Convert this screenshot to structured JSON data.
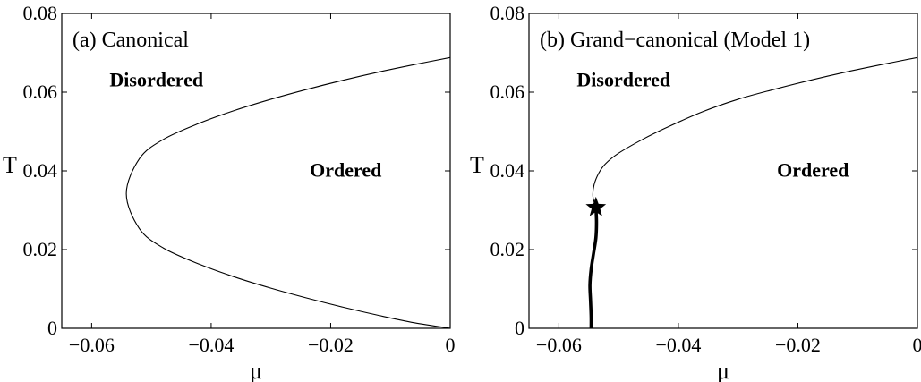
{
  "chart_data": [
    {
      "type": "line",
      "title": "(a) Canonical",
      "xlabel": "μ",
      "ylabel": "T",
      "xlim": [
        -0.065,
        0
      ],
      "ylim": [
        0,
        0.08
      ],
      "xticks": [
        -0.06,
        -0.04,
        -0.02,
        0
      ],
      "xtick_labels": [
        "−0.06",
        "−0.04",
        "−0.02",
        "0"
      ],
      "yticks": [
        0,
        0.02,
        0.04,
        0.06,
        0.08
      ],
      "ytick_labels": [
        "0",
        "0.02",
        "0.04",
        "0.06",
        "0.08"
      ],
      "grid": false,
      "annotations": [
        {
          "text": "Disordered",
          "x": -0.057,
          "y": 0.0615
        },
        {
          "text": "Ordered",
          "x": -0.0235,
          "y": 0.0385
        }
      ],
      "series": [
        {
          "style": "thin",
          "x": [
            0,
            -0.006,
            -0.012,
            -0.018,
            -0.024,
            -0.03,
            -0.036,
            -0.042,
            -0.048,
            -0.052,
            -0.0542,
            -0.052,
            -0.048,
            -0.042,
            -0.036,
            -0.03,
            -0.024,
            -0.018,
            -0.012,
            -0.006,
            0
          ],
          "y": [
            0,
            0.0014,
            0.0033,
            0.0054,
            0.0077,
            0.0102,
            0.013,
            0.0163,
            0.0204,
            0.0253,
            0.0342,
            0.0431,
            0.048,
            0.0521,
            0.0554,
            0.0582,
            0.0607,
            0.063,
            0.0651,
            0.067,
            0.0688
          ]
        }
      ]
    },
    {
      "type": "line",
      "title": "(b) Grand−canonical (Model 1)",
      "xlabel": "μ",
      "ylabel": "T",
      "xlim": [
        -0.065,
        0
      ],
      "ylim": [
        0,
        0.08
      ],
      "xticks": [
        -0.06,
        -0.04,
        -0.02,
        0
      ],
      "xtick_labels": [
        "−0.06",
        "−0.04",
        "−0.02",
        "0"
      ],
      "yticks": [
        0,
        0.02,
        0.04,
        0.06,
        0.08
      ],
      "ytick_labels": [
        "0",
        "0.02",
        "0.04",
        "0.06",
        "0.08"
      ],
      "grid": false,
      "annotations": [
        {
          "text": "Disordered",
          "x": -0.057,
          "y": 0.0615
        },
        {
          "text": "Ordered",
          "x": -0.0235,
          "y": 0.0385
        }
      ],
      "marker": {
        "shape": "star",
        "x": -0.0538,
        "y": 0.0307
      },
      "series": [
        {
          "style": "thin",
          "x": [
            -0.0538,
            -0.0543,
            -0.0541,
            -0.0533,
            -0.0522,
            -0.05,
            -0.046,
            -0.042,
            -0.036,
            -0.03,
            -0.024,
            -0.018,
            -0.012,
            -0.006,
            0
          ],
          "y": [
            0.0307,
            0.0335,
            0.0365,
            0.0395,
            0.0418,
            0.0445,
            0.048,
            0.051,
            0.055,
            0.0582,
            0.0607,
            0.063,
            0.0651,
            0.067,
            0.0688
          ]
        },
        {
          "style": "thick",
          "x": [
            -0.0538,
            -0.0537,
            -0.0538,
            -0.0542,
            -0.0546,
            -0.0548,
            -0.0547,
            -0.0546,
            -0.0546
          ],
          "y": [
            0.0307,
            0.027,
            0.023,
            0.019,
            0.015,
            0.011,
            0.007,
            0.003,
            0
          ]
        }
      ]
    }
  ]
}
